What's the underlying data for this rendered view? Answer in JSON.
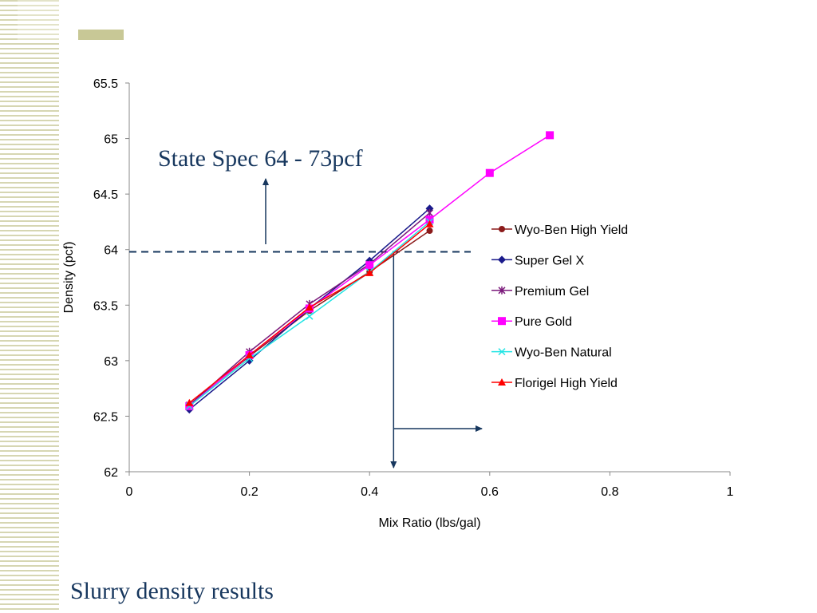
{
  "slide": {
    "title": "Slurry density results",
    "accent_color": "#c8c896",
    "text_color": "#17375e"
  },
  "chart_data": {
    "type": "line",
    "title": "",
    "xlabel": "Mix Ratio (lbs/gal)",
    "ylabel": "Density (pcf)",
    "xlim": [
      0,
      1
    ],
    "ylim": [
      62,
      65.5
    ],
    "xticks": [
      0,
      0.2,
      0.4,
      0.6,
      0.8,
      1
    ],
    "yticks": [
      62,
      62.5,
      63,
      63.5,
      64,
      64.5,
      65,
      65.5
    ],
    "xtick_labels": [
      "0",
      "0.2",
      "0.4",
      "0.6",
      "0.8",
      "1"
    ],
    "ytick_labels": [
      "62",
      "62.5",
      "63",
      "63.5",
      "64",
      "64.5",
      "65",
      "65.5"
    ],
    "grid": false,
    "legend_position": "right",
    "series": [
      {
        "name": "Wyo-Ben High Yield",
        "color": "#8b1a1a",
        "marker": "circle",
        "x": [
          0.1,
          0.2,
          0.3,
          0.4,
          0.5
        ],
        "y": [
          62.6,
          63.04,
          63.45,
          63.8,
          64.17
        ]
      },
      {
        "name": "Super Gel X",
        "color": "#1a1a8b",
        "marker": "diamond",
        "x": [
          0.1,
          0.2,
          0.3,
          0.4,
          0.5
        ],
        "y": [
          62.56,
          63.0,
          63.47,
          63.9,
          64.37
        ]
      },
      {
        "name": "Premium Gel",
        "color": "#7b1a7b",
        "marker": "star",
        "x": [
          0.1,
          0.2,
          0.3,
          0.4,
          0.5
        ],
        "y": [
          62.6,
          63.08,
          63.51,
          63.87,
          64.33
        ]
      },
      {
        "name": "Pure Gold",
        "color": "#ff00ff",
        "marker": "square",
        "x": [
          0.1,
          0.2,
          0.3,
          0.4,
          0.5,
          0.6,
          0.7
        ],
        "y": [
          62.59,
          63.05,
          63.47,
          63.86,
          64.27,
          64.69,
          65.03
        ]
      },
      {
        "name": "Wyo-Ben Natural",
        "color": "#22e4e4",
        "marker": "x",
        "x": [
          0.1,
          0.2,
          0.3,
          0.4,
          0.5
        ],
        "y": [
          62.59,
          63.02,
          63.4,
          63.8,
          64.25
        ]
      },
      {
        "name": "Florigel High Yield",
        "color": "#ff0000",
        "marker": "triangle",
        "x": [
          0.1,
          0.2,
          0.3,
          0.4,
          0.5
        ],
        "y": [
          62.62,
          63.05,
          63.48,
          63.79,
          64.23
        ]
      }
    ],
    "annotations": {
      "spec_text": "State Spec 64 - 73pcf",
      "spec_line_y": 63.98,
      "spec_line_color": "#17375e",
      "intersection_x": 0.44
    }
  }
}
